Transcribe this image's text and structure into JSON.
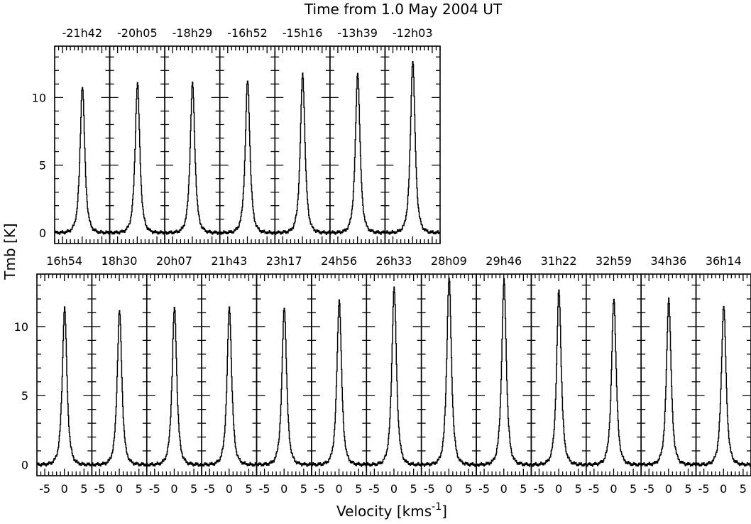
{
  "chart_data": {
    "type": "line",
    "title": "Time from 1.0 May 2004 UT",
    "xlabel": "Velocity [kms",
    "xlabel_superscript": "-1",
    "xlabel_suffix": "]",
    "ylabel": "Tmb [K]",
    "xlim": [
      -7,
      7
    ],
    "ylim": [
      -0.8,
      13.8
    ],
    "x_ticks": [
      "-5",
      "0",
      "5"
    ],
    "y_ticks": [
      "0",
      "5",
      "10"
    ],
    "grid": false,
    "line_color": "#000000",
    "rows": [
      {
        "panels": [
          {
            "label": "-21h42",
            "peak": 10.5,
            "center": 0.0
          },
          {
            "label": "-20h05",
            "peak": 10.7,
            "center": 0.0
          },
          {
            "label": "-18h29",
            "peak": 10.7,
            "center": 0.0
          },
          {
            "label": "-16h52",
            "peak": 10.9,
            "center": 0.0
          },
          {
            "label": "-15h16",
            "peak": 11.4,
            "center": 0.0
          },
          {
            "label": "-13h39",
            "peak": 11.5,
            "center": 0.0
          },
          {
            "label": "-12h03",
            "peak": 12.4,
            "center": 0.0
          }
        ]
      },
      {
        "panels": [
          {
            "label": "16h54",
            "peak": 11.0,
            "center": 0.0
          },
          {
            "label": "18h30",
            "peak": 10.8,
            "center": 0.0
          },
          {
            "label": "20h07",
            "peak": 11.0,
            "center": 0.0
          },
          {
            "label": "21h43",
            "peak": 11.0,
            "center": 0.0
          },
          {
            "label": "23h17",
            "peak": 11.1,
            "center": 0.0
          },
          {
            "label": "24h56",
            "peak": 11.6,
            "center": 0.0
          },
          {
            "label": "26h33",
            "peak": 12.5,
            "center": 0.0
          },
          {
            "label": "28h09",
            "peak": 13.2,
            "center": 0.0
          },
          {
            "label": "29h46",
            "peak": 13.0,
            "center": 0.0
          },
          {
            "label": "31h22",
            "peak": 12.3,
            "center": 0.0
          },
          {
            "label": "32h59",
            "peak": 11.7,
            "center": 0.0
          },
          {
            "label": "34h36",
            "peak": 11.7,
            "center": 0.0
          },
          {
            "label": "36h14",
            "peak": 11.2,
            "center": 0.0
          }
        ]
      }
    ]
  }
}
